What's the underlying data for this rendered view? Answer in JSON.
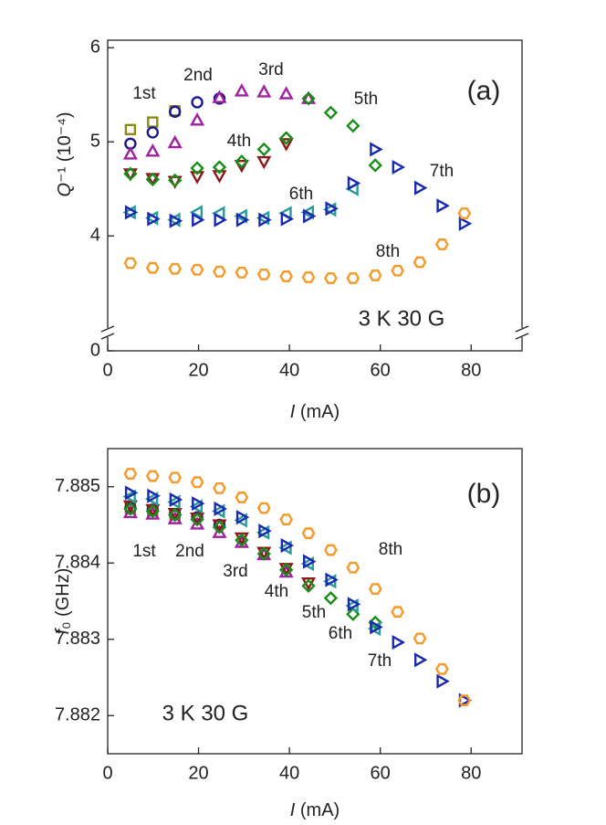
{
  "chart_data": [
    {
      "type": "scatter",
      "annotations": [
        "(a)",
        "3 K 30 G"
      ],
      "xlabel": {
        "symbol": "I",
        "rest": " (mA)"
      },
      "ylabel": {
        "symbol": "Q",
        "rest": "⁻¹ (10⁻⁴)"
      },
      "xlim": [
        0,
        91.2
      ],
      "xticks": [
        0,
        20,
        40,
        60,
        80
      ],
      "ylim": [
        0,
        6.08
      ],
      "ybreak": [
        0.2,
        3.05
      ],
      "yticks": [
        0,
        4,
        5,
        6
      ],
      "series": [
        {
          "name": "1st",
          "color": "#8b8b1a",
          "marker": "square",
          "x": [
            5,
            9.9,
            14.8
          ],
          "values": [
            5.13,
            5.21,
            5.33
          ]
        },
        {
          "name": "2nd",
          "color": "#1a1a8c",
          "marker": "circle",
          "x": [
            5,
            9.9,
            14.8,
            19.7,
            24.6
          ],
          "values": [
            4.98,
            5.1,
            5.32,
            5.42,
            5.46
          ]
        },
        {
          "name": "3rd",
          "color": "#a020a0",
          "marker": "triangle-up",
          "x": [
            5,
            9.9,
            14.8,
            19.7,
            24.6,
            29.5,
            34.4,
            39.3,
            44.2
          ],
          "values": [
            4.87,
            4.9,
            4.99,
            5.23,
            5.47,
            5.54,
            5.53,
            5.51,
            5.46
          ]
        },
        {
          "name": "4th",
          "color": "#8b1a1a",
          "marker": "triangle-down",
          "x": [
            5,
            9.9,
            14.8,
            19.7,
            24.6,
            29.5,
            34.4,
            39.3
          ],
          "values": [
            4.66,
            4.61,
            4.58,
            4.63,
            4.64,
            4.75,
            4.79,
            4.98
          ]
        },
        {
          "name": "5th",
          "color": "#1a8c1a",
          "marker": "diamond",
          "x": [
            5,
            9.9,
            14.8,
            19.7,
            24.6,
            29.5,
            34.4,
            39.3,
            44.2,
            49.1,
            54,
            58.9
          ],
          "values": [
            4.66,
            4.6,
            4.59,
            4.72,
            4.73,
            4.79,
            4.92,
            5.04,
            5.46,
            5.31,
            5.17,
            4.75
          ]
        },
        {
          "name": "6th",
          "color": "#2a9a9a",
          "marker": "triangle-left",
          "x": [
            5,
            9.9,
            14.8,
            19.7,
            24.6,
            29.5,
            34.4,
            39.3,
            44.2,
            49.1,
            54
          ],
          "values": [
            4.25,
            4.19,
            4.17,
            4.25,
            4.24,
            4.21,
            4.19,
            4.24,
            4.25,
            4.28,
            4.5
          ]
        },
        {
          "name": "7th",
          "color": "#1a2ab0",
          "marker": "triangle-right",
          "x": [
            5,
            9.9,
            14.8,
            19.7,
            24.6,
            29.5,
            34.4,
            39.3,
            44.2,
            49.1,
            54,
            58.9,
            63.8,
            68.7,
            73.6,
            78.5
          ],
          "values": [
            4.25,
            4.18,
            4.16,
            4.17,
            4.17,
            4.17,
            4.17,
            4.18,
            4.21,
            4.29,
            4.56,
            4.92,
            4.73,
            4.51,
            4.32,
            4.13
          ]
        },
        {
          "name": "8th",
          "color": "#f59a2a",
          "marker": "hexagon",
          "x": [
            5,
            9.9,
            14.8,
            19.7,
            24.6,
            29.5,
            34.4,
            39.3,
            44.2,
            49.1,
            54,
            58.9,
            63.8,
            68.7,
            73.6,
            78.5
          ],
          "values": [
            3.71,
            3.66,
            3.65,
            3.64,
            3.62,
            3.61,
            3.59,
            3.57,
            3.56,
            3.55,
            3.55,
            3.58,
            3.63,
            3.72,
            3.91,
            4.24
          ]
        }
      ]
    },
    {
      "type": "scatter",
      "annotations": [
        "(b)",
        "3 K 30 G"
      ],
      "xlabel": {
        "symbol": "I",
        "rest": " (mA)"
      },
      "ylabel": {
        "symbol": "f",
        "rest": "₀ (GHz)"
      },
      "xlim": [
        0,
        91.2
      ],
      "xticks": [
        0,
        20,
        40,
        60,
        80
      ],
      "ylim": [
        7.8815,
        7.8855
      ],
      "yticks": [
        7.882,
        7.883,
        7.884,
        7.885
      ],
      "series": [
        {
          "name": "1st",
          "color": "#8b8b1a",
          "marker": "square",
          "x": [
            5,
            9.9,
            14.8
          ],
          "values": [
            7.88471,
            7.88468,
            7.88463
          ]
        },
        {
          "name": "2nd",
          "color": "#1a1a8c",
          "marker": "circle",
          "x": [
            5,
            9.9,
            14.8,
            19.7,
            24.6
          ],
          "values": [
            7.88472,
            7.8847,
            7.88464,
            7.8846,
            7.8845
          ]
        },
        {
          "name": "3rd",
          "color": "#a020a0",
          "marker": "triangle-up",
          "x": [
            5,
            9.9,
            14.8,
            19.7,
            24.6,
            29.5,
            34.4,
            39.3
          ],
          "values": [
            7.88466,
            7.88464,
            7.88458,
            7.88451,
            7.8844,
            7.88427,
            7.88411,
            7.88388
          ]
        },
        {
          "name": "4th",
          "color": "#8b1a1a",
          "marker": "triangle-down",
          "x": [
            5,
            9.9,
            14.8,
            19.7,
            24.6,
            29.5,
            34.4,
            39.3,
            44.2
          ],
          "values": [
            7.88475,
            7.8847,
            7.88465,
            7.88459,
            7.8845,
            7.88433,
            7.88414,
            7.88393,
            7.88374
          ]
        },
        {
          "name": "5th",
          "color": "#1a8c1a",
          "marker": "diamond",
          "x": [
            5,
            9.9,
            14.8,
            19.7,
            24.6,
            29.5,
            34.4,
            39.3,
            44.2,
            49.1,
            54,
            58.9
          ],
          "values": [
            7.88471,
            7.88468,
            7.88463,
            7.88457,
            7.88447,
            7.8843,
            7.88412,
            7.88391,
            7.8837,
            7.88354,
            7.88333,
            7.88322
          ]
        },
        {
          "name": "6th",
          "color": "#2a9a9a",
          "marker": "triangle-left",
          "x": [
            5,
            9.9,
            14.8,
            19.7,
            24.6,
            29.5,
            34.4,
            39.3,
            44.2,
            49.1,
            54,
            58.9
          ],
          "values": [
            7.88487,
            7.88484,
            7.8848,
            7.88474,
            7.88468,
            7.88456,
            7.8844,
            7.8842,
            7.88399,
            7.88376,
            7.88344,
            7.88314
          ]
        },
        {
          "name": "7th",
          "color": "#1a2ab0",
          "marker": "triangle-right",
          "x": [
            5,
            9.9,
            14.8,
            19.7,
            24.6,
            29.5,
            34.4,
            39.3,
            44.2,
            49.1,
            54,
            58.9,
            63.8,
            68.7,
            73.6,
            78.5
          ],
          "values": [
            7.88492,
            7.88488,
            7.88483,
            7.88478,
            7.88471,
            7.8846,
            7.88442,
            7.88423,
            7.88402,
            7.88378,
            7.88346,
            7.88316,
            7.88296,
            7.88273,
            7.88245,
            7.8822
          ]
        },
        {
          "name": "8th",
          "color": "#f59a2a",
          "marker": "hexagon",
          "x": [
            5,
            9.9,
            14.8,
            19.7,
            24.6,
            29.5,
            34.4,
            39.3,
            44.2,
            49.1,
            54,
            58.9,
            63.8,
            68.7,
            73.6,
            78.5
          ],
          "values": [
            7.88517,
            7.88514,
            7.88512,
            7.88506,
            7.88498,
            7.88486,
            7.88472,
            7.88457,
            7.88439,
            7.88417,
            7.88394,
            7.88366,
            7.88336,
            7.88301,
            7.88261,
            7.8822
          ]
        }
      ]
    }
  ]
}
